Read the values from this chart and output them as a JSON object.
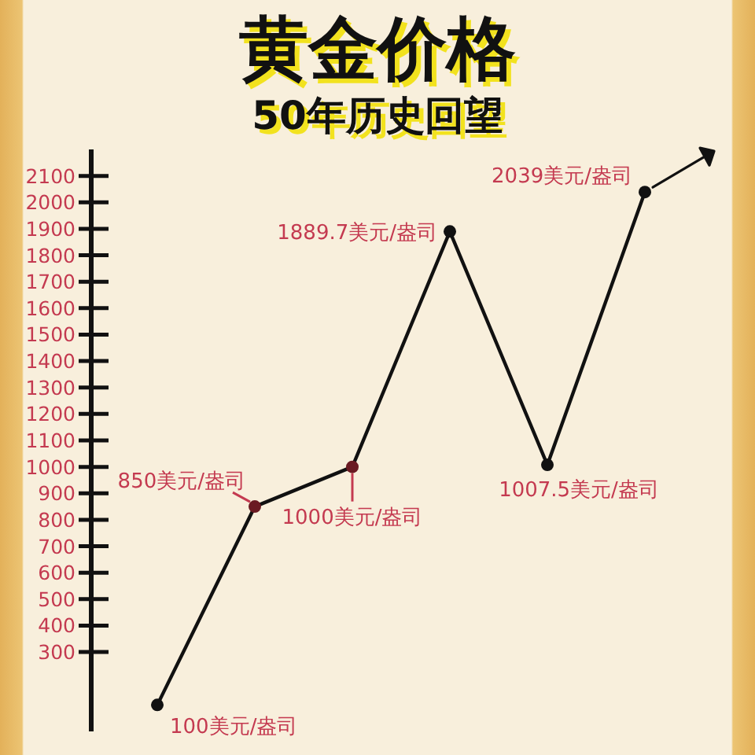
{
  "chart_data": {
    "type": "line",
    "title": "黄金价格",
    "subtitle": "50年历史回望",
    "categories": [
      null,
      null,
      null,
      null,
      null,
      null
    ],
    "series": [
      {
        "color": "#111111",
        "colors": [
          "#111111",
          "#6a1a22",
          "#6a1a22",
          "#111111",
          "#111111",
          "#111111"
        ],
        "values": [
          100,
          850,
          1000,
          1889.7,
          1007.5,
          2039
        ],
        "value_labels": [
          "100美元/盎司",
          "850美元/盎司",
          "1000美元/盎司",
          "1889.7美元/盎司",
          "1007.5美元/盎司",
          "2039美元/盎司"
        ]
      }
    ],
    "ylim": [
      0,
      2200
    ],
    "yticks": [
      300,
      400,
      500,
      600,
      700,
      800,
      900,
      1000,
      1100,
      1200,
      1300,
      1400,
      1500,
      1600,
      1700,
      1800,
      1900,
      2000,
      2100
    ],
    "tick_labels": "y",
    "marker": "circle",
    "line_style": "solid"
  }
}
